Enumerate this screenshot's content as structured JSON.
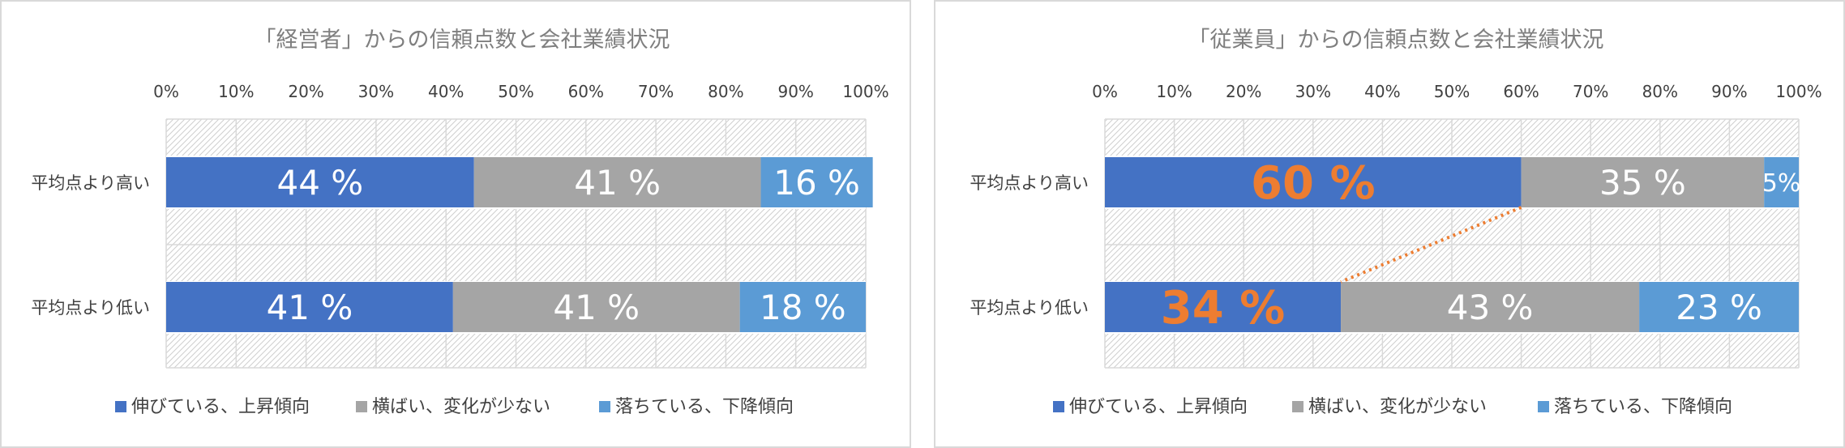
{
  "colors": {
    "series1": "#4472c4",
    "series2": "#a5a5a5",
    "series3": "#5b9bd5",
    "highlight": "#ed7d31",
    "title": "#7f7f7f",
    "axis_text": "#404040",
    "grid": "#d9d9d9"
  },
  "chart_data": [
    {
      "type": "bar",
      "orientation": "horizontal",
      "stacked": "percent",
      "title": "「経営者」からの信頼点数と会社業績状況",
      "categories": [
        "平均点より高い",
        "平均点より低い"
      ],
      "x_ticks": [
        "0%",
        "10%",
        "20%",
        "30%",
        "40%",
        "50%",
        "60%",
        "70%",
        "80%",
        "90%",
        "100%"
      ],
      "xlim": [
        0,
        100
      ],
      "series": [
        {
          "name": "伸びている、上昇傾向",
          "values": [
            44,
            41
          ],
          "labels": [
            "44 %",
            "41 %"
          ]
        },
        {
          "name": "横ばい、変化が少ない",
          "values": [
            41,
            41
          ],
          "labels": [
            "41 %",
            "41 %"
          ]
        },
        {
          "name": "落ちている、下降傾向",
          "values": [
            16,
            18
          ],
          "labels": [
            "16 %",
            "18 %"
          ]
        }
      ],
      "legend": "bottom",
      "highlight_series1": false
    },
    {
      "type": "bar",
      "orientation": "horizontal",
      "stacked": "percent",
      "title": "「従業員」からの信頼点数と会社業績状況",
      "categories": [
        "平均点より高い",
        "平均点より低い"
      ],
      "x_ticks": [
        "0%",
        "10%",
        "20%",
        "30%",
        "40%",
        "50%",
        "60%",
        "70%",
        "80%",
        "90%",
        "100%"
      ],
      "xlim": [
        0,
        100
      ],
      "series": [
        {
          "name": "伸びている、上昇傾向",
          "values": [
            60,
            34
          ],
          "labels": [
            "60 %",
            "34 %"
          ]
        },
        {
          "name": "横ばい、変化が少ない",
          "values": [
            35,
            43
          ],
          "labels": [
            "35 %",
            "43 %"
          ]
        },
        {
          "name": "落ちている、下降傾向",
          "values": [
            5,
            23
          ],
          "labels": [
            "5%",
            "23 %"
          ]
        }
      ],
      "legend": "bottom",
      "highlight_series1": true
    }
  ]
}
